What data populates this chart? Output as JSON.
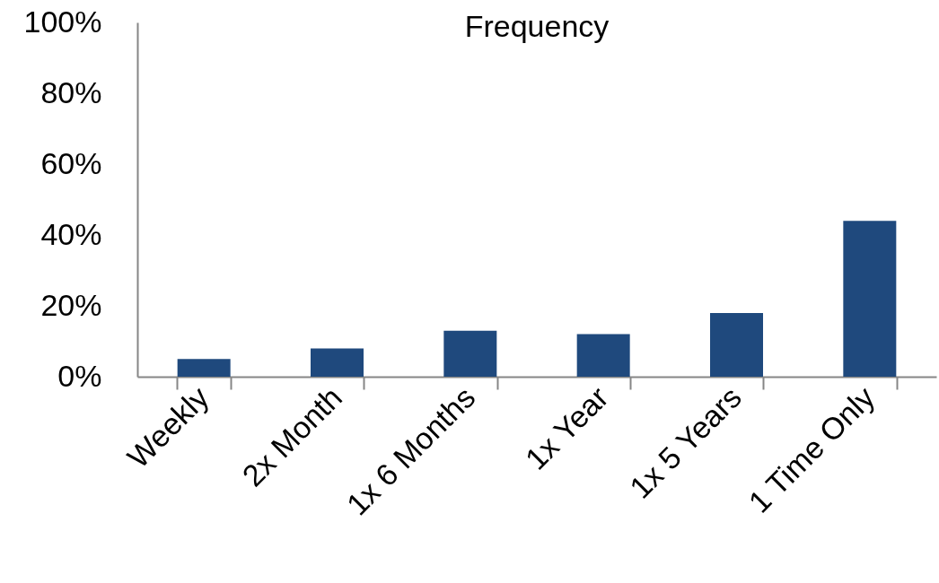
{
  "chart_data": {
    "type": "bar",
    "title": "Frequency",
    "categories": [
      "Weekly",
      "2x Month",
      "1x 6 Months",
      "1x Year",
      "1x 5 Years",
      "1 Time Only"
    ],
    "values": [
      5,
      8,
      13,
      12,
      18,
      44
    ],
    "color": "#1f497d",
    "ylim": [
      0,
      100
    ],
    "yticks": [
      {
        "value": 0,
        "label": "0%"
      },
      {
        "value": 20,
        "label": "20%"
      },
      {
        "value": 40,
        "label": "40%"
      },
      {
        "value": 60,
        "label": "60%"
      },
      {
        "value": 80,
        "label": "80%"
      },
      {
        "value": 100,
        "label": "100%"
      }
    ],
    "grid": false,
    "legend": false
  }
}
